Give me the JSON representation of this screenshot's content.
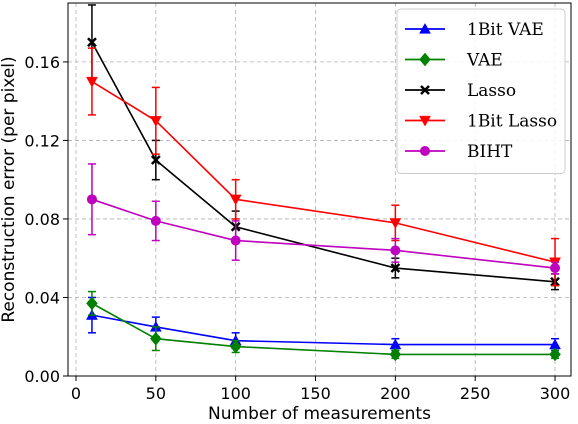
{
  "chart_data": {
    "type": "line",
    "xlabel": "Number of measurements",
    "ylabel": "Reconstruction error (per pixel)",
    "xlim": [
      -5,
      310
    ],
    "ylim": [
      0,
      0.19
    ],
    "xticks": [
      0,
      50,
      100,
      150,
      200,
      250,
      300
    ],
    "yticks": [
      0.0,
      0.04,
      0.08,
      0.12,
      0.16
    ],
    "xtick_labels": [
      "0",
      "50",
      "100",
      "150",
      "200",
      "250",
      "300"
    ],
    "ytick_labels": [
      "0.00",
      "0.04",
      "0.08",
      "0.12",
      "0.16"
    ],
    "grid": true,
    "legend_position": "top-right",
    "series": [
      {
        "name": "1Bit VAE",
        "color": "#0000ff",
        "marker": "triangle-up",
        "x": [
          10,
          50,
          100,
          200,
          300
        ],
        "y": [
          0.031,
          0.025,
          0.018,
          0.016,
          0.016
        ],
        "err": [
          0.009,
          0.005,
          0.004,
          0.003,
          0.003
        ]
      },
      {
        "name": "VAE",
        "color": "#008000",
        "marker": "diamond",
        "x": [
          10,
          50,
          100,
          200,
          300
        ],
        "y": [
          0.037,
          0.019,
          0.015,
          0.011,
          0.011
        ],
        "err": [
          0.006,
          0.006,
          0.003,
          0.002,
          0.002
        ]
      },
      {
        "name": "Lasso",
        "color": "#000000",
        "marker": "x",
        "x": [
          10,
          50,
          100,
          200,
          300
        ],
        "y": [
          0.17,
          0.11,
          0.076,
          0.055,
          0.048
        ],
        "err": [
          0.019,
          0.01,
          0.008,
          0.005,
          0.004
        ]
      },
      {
        "name": "1Bit Lasso",
        "color": "#ff0000",
        "marker": "triangle-down",
        "x": [
          10,
          50,
          100,
          200,
          300
        ],
        "y": [
          0.15,
          0.13,
          0.09,
          0.078,
          0.058
        ],
        "err": [
          0.017,
          0.017,
          0.01,
          0.009,
          0.012
        ]
      },
      {
        "name": "BIHT",
        "color": "#bf00bf",
        "marker": "circle",
        "x": [
          10,
          50,
          100,
          200,
          300
        ],
        "y": [
          0.09,
          0.079,
          0.069,
          0.064,
          0.055
        ],
        "err": [
          0.018,
          0.01,
          0.01,
          0.006,
          0.003
        ]
      }
    ]
  }
}
